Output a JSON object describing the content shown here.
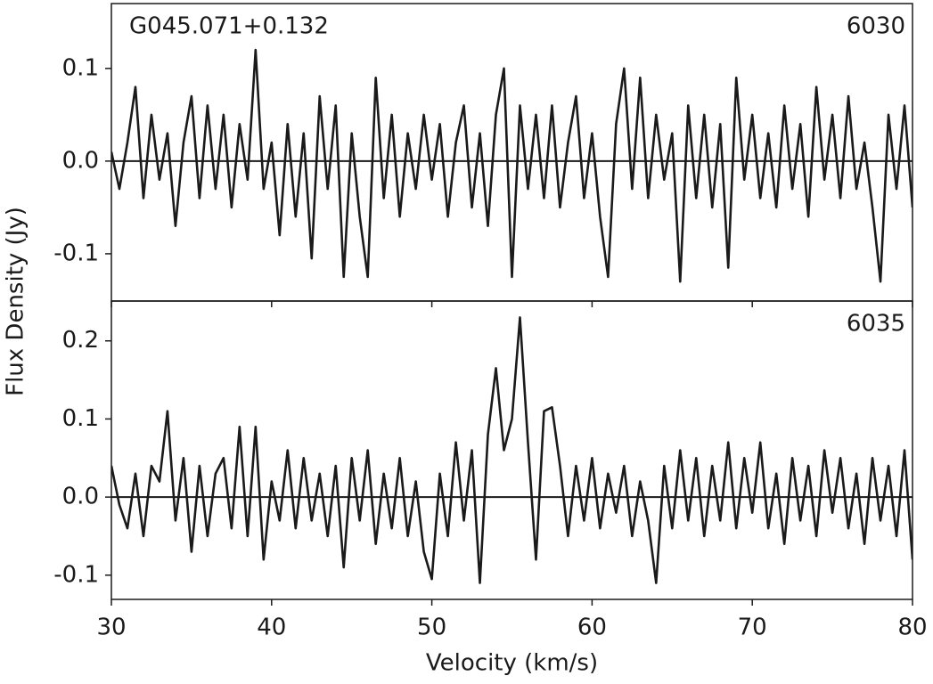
{
  "chart_data": [
    {
      "type": "line",
      "label": "G045.071+0.132",
      "tag": "6030",
      "ylabel": "Flux Density (Jy)",
      "x": [
        30,
        30.5,
        31,
        31.5,
        32,
        32.5,
        33,
        33.5,
        34,
        34.5,
        35,
        35.5,
        36,
        36.5,
        37,
        37.5,
        38,
        38.5,
        39,
        39.5,
        40,
        40.5,
        41,
        41.5,
        42,
        42.5,
        43,
        43.5,
        44,
        44.5,
        45,
        45.5,
        46,
        46.5,
        47,
        47.5,
        48,
        48.5,
        49,
        49.5,
        50,
        50.5,
        51,
        51.5,
        52,
        52.5,
        53,
        53.5,
        54,
        54.5,
        55,
        55.5,
        56,
        56.5,
        57,
        57.5,
        58,
        58.5,
        59,
        59.5,
        60,
        60.5,
        61,
        61.5,
        62,
        62.5,
        63,
        63.5,
        64,
        64.5,
        65,
        65.5,
        66,
        66.5,
        67,
        67.5,
        68,
        68.5,
        69,
        69.5,
        70,
        70.5,
        71,
        71.5,
        72,
        72.5,
        73,
        73.5,
        74,
        74.5,
        75,
        75.5,
        76,
        76.5,
        77,
        77.5,
        78,
        78.5,
        79,
        79.5,
        80
      ],
      "series": [
        {
          "color": "#1a1a1a",
          "values": [
            0.01,
            -0.03,
            0.02,
            0.08,
            -0.04,
            0.05,
            -0.02,
            0.03,
            -0.07,
            0.02,
            0.07,
            -0.04,
            0.06,
            -0.03,
            0.05,
            -0.05,
            0.04,
            -0.02,
            0.12,
            -0.03,
            0.02,
            -0.08,
            0.04,
            -0.06,
            0.03,
            -0.105,
            0.07,
            -0.03,
            0.06,
            -0.125,
            0.03,
            -0.06,
            -0.125,
            0.09,
            -0.04,
            0.05,
            -0.06,
            0.03,
            -0.03,
            0.05,
            -0.02,
            0.04,
            -0.06,
            0.02,
            0.06,
            -0.05,
            0.03,
            -0.07,
            0.05,
            0.1,
            -0.125,
            0.06,
            -0.03,
            0.05,
            -0.04,
            0.06,
            -0.05,
            0.02,
            0.07,
            -0.04,
            0.03,
            -0.06,
            -0.125,
            0.04,
            0.1,
            -0.03,
            0.09,
            -0.04,
            0.05,
            -0.02,
            0.03,
            -0.13,
            0.06,
            -0.04,
            0.05,
            -0.05,
            0.04,
            -0.115,
            0.09,
            -0.02,
            0.05,
            -0.04,
            0.03,
            -0.05,
            0.06,
            -0.03,
            0.04,
            -0.06,
            0.08,
            -0.02,
            0.05,
            -0.04,
            0.07,
            -0.03,
            0.02,
            -0.05,
            -0.13,
            0.05,
            -0.03,
            0.06,
            -0.05
          ]
        }
      ],
      "hline": 0,
      "xlim": [
        30,
        80
      ],
      "xticks": [
        30,
        40,
        50,
        60,
        70,
        80
      ],
      "ylim": [
        -0.151,
        0.17
      ],
      "yticks": [
        0.1,
        {
          "value": 0,
          "label": "0.0"
        },
        -0.1
      ]
    },
    {
      "type": "line",
      "tag": "6035",
      "xlabel": "Velocity (km/s)",
      "x": [
        30,
        30.5,
        31,
        31.5,
        32,
        32.5,
        33,
        33.5,
        34,
        34.5,
        35,
        35.5,
        36,
        36.5,
        37,
        37.5,
        38,
        38.5,
        39,
        39.5,
        40,
        40.5,
        41,
        41.5,
        42,
        42.5,
        43,
        43.5,
        44,
        44.5,
        45,
        45.5,
        46,
        46.5,
        47,
        47.5,
        48,
        48.5,
        49,
        49.5,
        50,
        50.5,
        51,
        51.5,
        52,
        52.5,
        53,
        53.5,
        54,
        54.5,
        55,
        55.5,
        56,
        56.5,
        57,
        57.5,
        58,
        58.5,
        59,
        59.5,
        60,
        60.5,
        61,
        61.5,
        62,
        62.5,
        63,
        63.5,
        64,
        64.5,
        65,
        65.5,
        66,
        66.5,
        67,
        67.5,
        68,
        68.5,
        69,
        69.5,
        70,
        70.5,
        71,
        71.5,
        72,
        72.5,
        73,
        73.5,
        74,
        74.5,
        75,
        75.5,
        76,
        76.5,
        77,
        77.5,
        78,
        78.5,
        79,
        79.5,
        80
      ],
      "series": [
        {
          "color": "#1a1a1a",
          "values": [
            0.04,
            -0.01,
            -0.04,
            0.03,
            -0.05,
            0.04,
            0.02,
            0.11,
            -0.03,
            0.05,
            -0.07,
            0.04,
            -0.05,
            0.03,
            0.05,
            -0.04,
            0.09,
            -0.05,
            0.09,
            -0.08,
            0.02,
            -0.03,
            0.06,
            -0.04,
            0.05,
            -0.03,
            0.03,
            -0.05,
            0.04,
            -0.09,
            0.05,
            -0.03,
            0.06,
            -0.06,
            0.03,
            -0.04,
            0.05,
            -0.05,
            0.02,
            -0.07,
            -0.105,
            0.03,
            -0.05,
            0.07,
            -0.03,
            0.06,
            -0.11,
            0.08,
            0.165,
            0.06,
            0.1,
            0.23,
            0.07,
            -0.08,
            0.11,
            0.115,
            0.04,
            -0.05,
            0.04,
            -0.03,
            0.05,
            -0.04,
            0.03,
            -0.02,
            0.04,
            -0.05,
            0.02,
            -0.03,
            -0.11,
            0.04,
            -0.04,
            0.06,
            -0.03,
            0.05,
            -0.05,
            0.04,
            -0.03,
            0.07,
            -0.04,
            0.05,
            -0.02,
            0.07,
            -0.04,
            0.03,
            -0.06,
            0.05,
            -0.03,
            0.04,
            -0.05,
            0.06,
            -0.02,
            0.05,
            -0.04,
            0.03,
            -0.06,
            0.05,
            -0.03,
            0.04,
            -0.05,
            0.06,
            -0.08
          ]
        }
      ],
      "hline": 0,
      "xlim": [
        30,
        80
      ],
      "xticks": [
        30,
        40,
        50,
        60,
        70,
        80
      ],
      "ylim": [
        -0.131,
        0.251
      ],
      "yticks": [
        0.2,
        0.1,
        {
          "value": 0,
          "label": "0.0"
        },
        -0.1
      ]
    }
  ]
}
